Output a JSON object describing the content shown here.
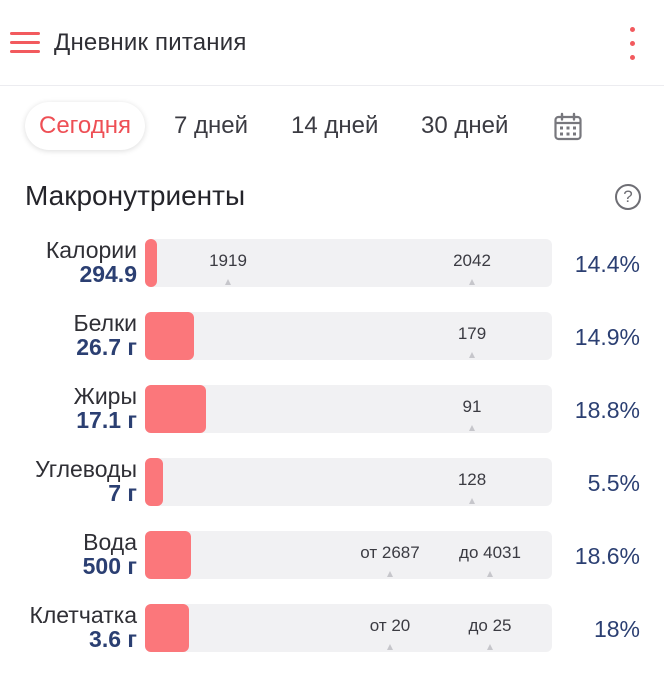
{
  "header": {
    "title": "Дневник питания",
    "menu_icon": "hamburger-menu-icon",
    "more_icon": "more-vertical-icon",
    "accent_color": "#f25a5e"
  },
  "tabs": [
    {
      "label": "Сегодня",
      "active": true
    },
    {
      "label": "7 дней",
      "active": false
    },
    {
      "label": "14 дней",
      "active": false
    },
    {
      "label": "30 дней",
      "active": false
    }
  ],
  "calendar_icon": "calendar-icon",
  "section": {
    "title": "Макронутриенты",
    "help_icon": "help-circle-icon",
    "help_glyph": "?"
  },
  "colors": {
    "bar_fill": "#fb777b",
    "bar_track": "#f1f1f3",
    "value_text": "#2b3f72"
  },
  "macros": [
    {
      "name": "Калории",
      "amount": "294.9",
      "percent": "14.4%",
      "fill_fraction": 0.03,
      "markers": [
        {
          "label": "1919",
          "at": 0.204
        },
        {
          "label": "2042",
          "at": 0.804
        }
      ]
    },
    {
      "name": "Белки",
      "amount": "26.7 г",
      "percent": "14.9%",
      "fill_fraction": 0.12,
      "markers": [
        {
          "label": "179",
          "at": 0.804
        }
      ]
    },
    {
      "name": "Жиры",
      "amount": "17.1 г",
      "percent": "18.8%",
      "fill_fraction": 0.15,
      "markers": [
        {
          "label": "91",
          "at": 0.804
        }
      ]
    },
    {
      "name": "Углеводы",
      "amount": "7 г",
      "percent": "5.5%",
      "fill_fraction": 0.045,
      "markers": [
        {
          "label": "128",
          "at": 0.804
        }
      ]
    },
    {
      "name": "Вода",
      "amount": "500 г",
      "percent": "18.6%",
      "fill_fraction": 0.113,
      "markers": [
        {
          "label": "от 2687",
          "at": 0.602
        },
        {
          "label": "до 4031",
          "at": 0.848
        }
      ]
    },
    {
      "name": "Клетчатка",
      "amount": "3.6 г",
      "percent": "18%",
      "fill_fraction": 0.108,
      "markers": [
        {
          "label": "от 20",
          "at": 0.602
        },
        {
          "label": "до 25",
          "at": 0.848
        }
      ]
    }
  ]
}
